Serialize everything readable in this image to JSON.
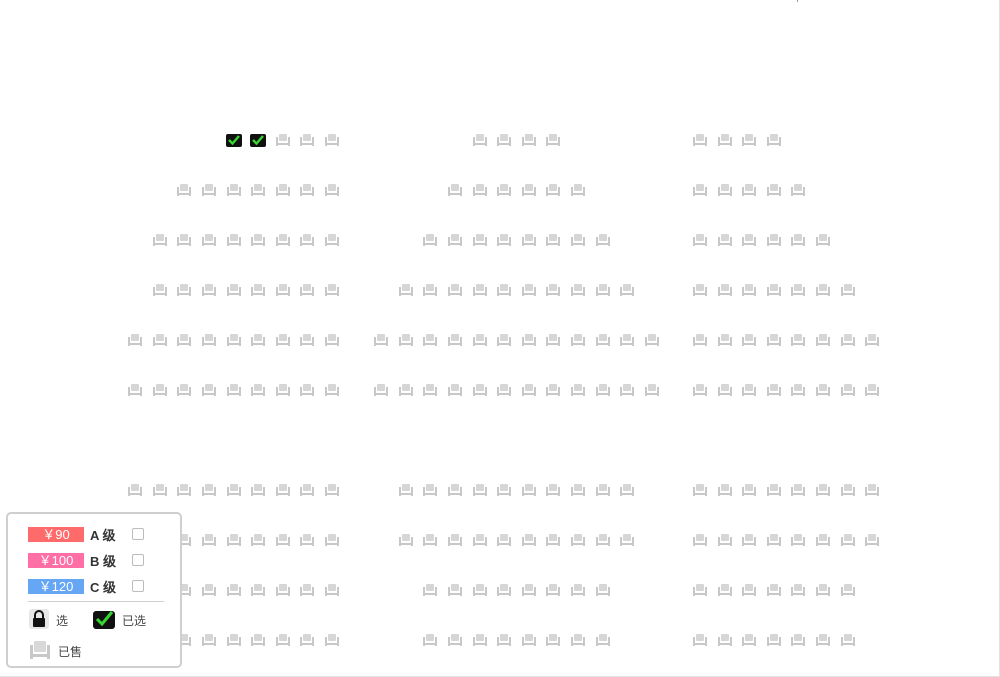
{
  "seat_map": {
    "rows": [
      {
        "blocks": [
          5,
          4,
          4
        ],
        "selected": [
          0,
          1
        ]
      },
      {
        "blocks": [
          7,
          6,
          5
        ]
      },
      {
        "blocks": [
          8,
          8,
          6
        ]
      },
      {
        "blocks": [
          8,
          10,
          7
        ]
      },
      {
        "blocks": [
          9,
          12,
          8
        ]
      },
      {
        "blocks": [
          9,
          12,
          8
        ]
      },
      {
        "blocks": [
          9,
          10,
          8
        ]
      },
      {
        "blocks": [
          9,
          10,
          8
        ]
      },
      {
        "blocks": [
          8,
          8,
          7
        ]
      },
      {
        "blocks": [
          8,
          8,
          7
        ]
      }
    ],
    "colors": {
      "sold": "#c8c8c8",
      "selected_bg": "#111111",
      "selected_check": "#37d62f"
    }
  },
  "legend": {
    "prices": [
      {
        "price": "￥90",
        "grade": "A 级",
        "color": "#ff6b6b"
      },
      {
        "price": "￥100",
        "grade": "B 级",
        "color": "#ff6fa6"
      },
      {
        "price": "￥120",
        "grade": "C 级",
        "color": "#65a6f5"
      }
    ],
    "items": {
      "available": {
        "label": "选",
        "icon": "lock-icon"
      },
      "selected": {
        "label": "已选",
        "icon": "seat-selected-icon"
      },
      "sold": {
        "label": "已售",
        "icon": "seat-sold-icon"
      }
    }
  }
}
